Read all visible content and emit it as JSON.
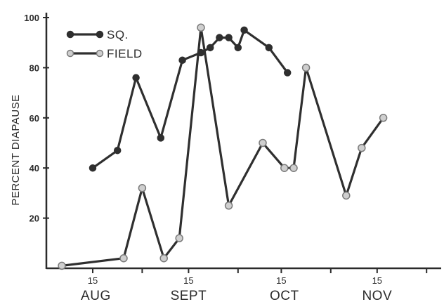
{
  "chart_data": {
    "type": "line",
    "title": "",
    "ylabel": "PERCENT DIAPAUSE",
    "xlabel": "",
    "ylim": [
      0,
      100
    ],
    "y_ticks": [
      20,
      40,
      60,
      80,
      100
    ],
    "x_range_days": [
      0,
      153
    ],
    "x_ticks": [
      {
        "label": "15",
        "day": 15
      },
      {
        "label": "15",
        "day": 46
      },
      {
        "label": "15",
        "day": 76
      },
      {
        "label": "15",
        "day": 107
      },
      {
        "label": "",
        "day": 31
      },
      {
        "label": "",
        "day": 62
      },
      {
        "label": "",
        "day": 92
      },
      {
        "label": "",
        "day": 123
      }
    ],
    "month_labels": [
      {
        "label": "AUG",
        "day": 16
      },
      {
        "label": "SEPT",
        "day": 46
      },
      {
        "label": "OCT",
        "day": 77
      },
      {
        "label": "NOV",
        "day": 107
      }
    ],
    "legend": {
      "position": "top-left",
      "entries": [
        {
          "name": "SQ.",
          "marker": "filled"
        },
        {
          "name": "FIELD",
          "marker": "open"
        }
      ]
    },
    "series": [
      {
        "name": "SQ.",
        "marker": "filled",
        "points": [
          {
            "x": 15,
            "y": 40
          },
          {
            "x": 23,
            "y": 47
          },
          {
            "x": 29,
            "y": 76
          },
          {
            "x": 37,
            "y": 52
          },
          {
            "x": 44,
            "y": 83
          },
          {
            "x": 50,
            "y": 86
          },
          {
            "x": 53,
            "y": 88
          },
          {
            "x": 56,
            "y": 92
          },
          {
            "x": 59,
            "y": 92
          },
          {
            "x": 62,
            "y": 88
          },
          {
            "x": 64,
            "y": 95
          },
          {
            "x": 72,
            "y": 88
          },
          {
            "x": 78,
            "y": 78
          }
        ]
      },
      {
        "name": "FIELD",
        "marker": "open",
        "points": [
          {
            "x": 5,
            "y": 1
          },
          {
            "x": 25,
            "y": 4
          },
          {
            "x": 31,
            "y": 32
          },
          {
            "x": 38,
            "y": 4
          },
          {
            "x": 43,
            "y": 12
          },
          {
            "x": 50,
            "y": 96
          },
          {
            "x": 59,
            "y": 25
          },
          {
            "x": 70,
            "y": 50
          },
          {
            "x": 77,
            "y": 40
          },
          {
            "x": 80,
            "y": 40
          },
          {
            "x": 84,
            "y": 80
          },
          {
            "x": 97,
            "y": 29
          },
          {
            "x": 102,
            "y": 48
          },
          {
            "x": 109,
            "y": 60
          }
        ]
      }
    ]
  }
}
